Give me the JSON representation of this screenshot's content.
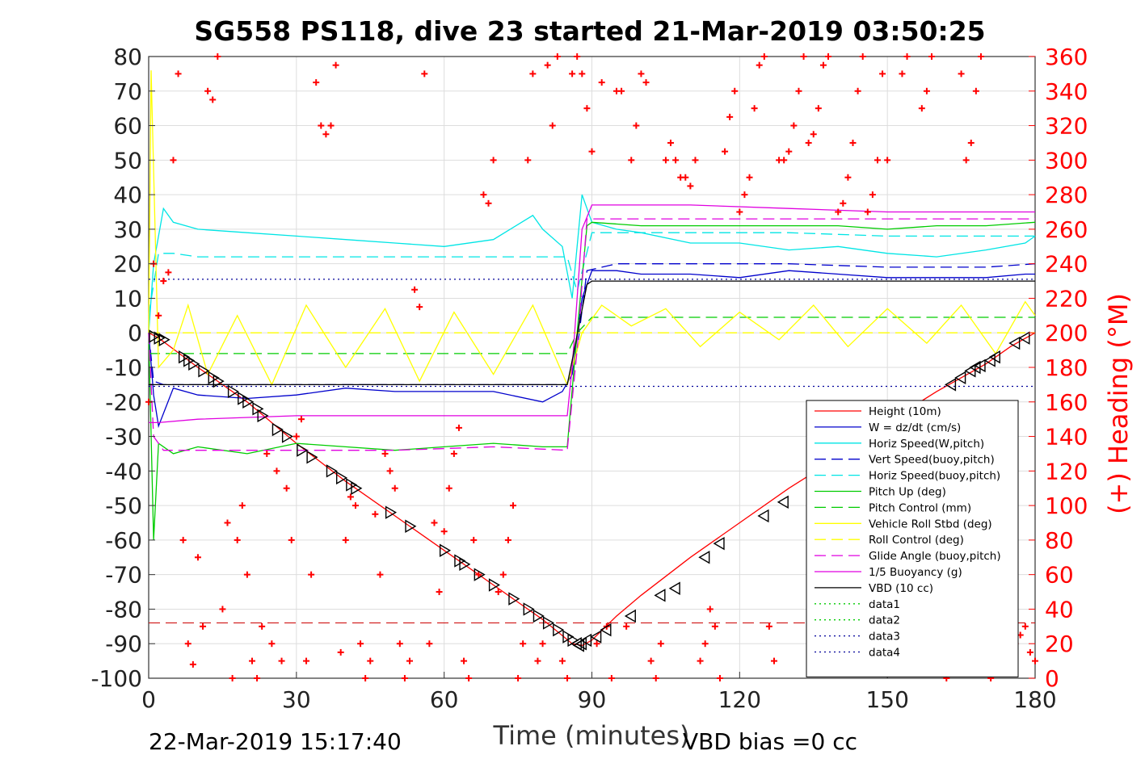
{
  "chart_data": {
    "type": "line",
    "title": "SG558 PS118, dive 23 started 21-Mar-2019 03:50:25",
    "xlabel": "Time (minutes)",
    "ylabel_right": "(+) Heading (°M)",
    "xlim": [
      0,
      180
    ],
    "ylim": [
      -100,
      80
    ],
    "ylim_right": [
      0,
      360
    ],
    "x_ticks": [
      0,
      30,
      60,
      90,
      120,
      150,
      180
    ],
    "y_ticks": [
      80,
      70,
      60,
      50,
      40,
      30,
      20,
      10,
      0,
      -10,
      -20,
      -30,
      -40,
      -50,
      -60,
      -70,
      -80,
      -90,
      -100
    ],
    "y_ticks_right": [
      360,
      340,
      320,
      300,
      280,
      260,
      240,
      220,
      200,
      180,
      160,
      140,
      120,
      100,
      80,
      60,
      40,
      20,
      0
    ],
    "grid": true,
    "legend_position": "lower-right",
    "footer_left": "22-Mar-2019 15:17:40",
    "footer_right": "VBD bias =0 cc",
    "series": [
      {
        "name": "Height (10m)",
        "color": "#ff0000",
        "style": "solid",
        "x": [
          0,
          2,
          10,
          20,
          30,
          40,
          50,
          60,
          70,
          80,
          86,
          88,
          90,
          95,
          100,
          110,
          120,
          130,
          140,
          150,
          160,
          170,
          175,
          180
        ],
        "y": [
          0,
          -1.5,
          -10,
          -20,
          -32,
          -43,
          -53,
          -63,
          -73,
          -83,
          -90,
          -90.5,
          -89,
          -82,
          -76,
          -65,
          -55,
          -45,
          -36,
          -26,
          -17,
          -9,
          -4,
          0
        ]
      },
      {
        "name": "W = dz/dt (cm/s)",
        "color": "#0000cc",
        "style": "solid",
        "x": [
          0,
          1,
          2,
          5,
          10,
          20,
          30,
          40,
          50,
          60,
          70,
          80,
          84,
          86,
          88,
          90,
          95,
          100,
          110,
          120,
          130,
          140,
          150,
          160,
          170,
          178,
          180
        ],
        "y": [
          0,
          -18,
          -27,
          -16,
          -18,
          -19,
          -18,
          -16,
          -17,
          -17,
          -17,
          -20,
          -17,
          -12,
          10,
          18,
          18,
          17,
          17,
          16,
          18,
          17,
          16,
          16,
          16,
          17,
          17
        ]
      },
      {
        "name": "Horiz Speed(W,pitch)",
        "color": "#00e5e5",
        "style": "solid",
        "x": [
          0,
          1,
          2,
          3,
          5,
          10,
          20,
          30,
          40,
          50,
          60,
          70,
          78,
          80,
          84,
          86,
          88,
          90,
          95,
          100,
          110,
          120,
          130,
          140,
          150,
          160,
          170,
          178,
          180
        ],
        "y": [
          0,
          20,
          28,
          36,
          32,
          30,
          29,
          28,
          27,
          26,
          25,
          27,
          34,
          30,
          25,
          10,
          40,
          32,
          30,
          29,
          26,
          26,
          24,
          25,
          23,
          22,
          24,
          26,
          28
        ]
      },
      {
        "name": "Vert Speed(buoy,pitch)",
        "color": "#0000cc",
        "style": "dashed",
        "x": [
          0,
          1,
          3,
          10,
          30,
          50,
          70,
          85,
          87,
          89,
          95,
          110,
          130,
          150,
          170,
          180
        ],
        "y": [
          0,
          -14,
          -15,
          -15,
          -15,
          -15,
          -15,
          -15,
          -5,
          18,
          20,
          20,
          20,
          19,
          19,
          20
        ]
      },
      {
        "name": "Horiz Speed(buoy,pitch)",
        "color": "#00e5e5",
        "style": "dashed",
        "x": [
          0,
          2,
          5,
          10,
          30,
          50,
          70,
          85,
          87,
          90,
          110,
          130,
          150,
          170,
          180
        ],
        "y": [
          5,
          23,
          23,
          22,
          22,
          22,
          22,
          22,
          12,
          29,
          29,
          29,
          28,
          28,
          28
        ]
      },
      {
        "name": "Pitch Up (deg)",
        "color": "#00cc00",
        "style": "solid",
        "x": [
          0,
          1,
          2,
          5,
          10,
          20,
          30,
          40,
          50,
          60,
          70,
          80,
          85,
          87,
          89,
          90,
          100,
          110,
          120,
          130,
          140,
          150,
          160,
          170,
          180
        ],
        "y": [
          0,
          -60,
          -32,
          -35,
          -33,
          -35,
          -32,
          -33,
          -34,
          -33,
          -32,
          -33,
          -33,
          0,
          31,
          32,
          31,
          31,
          31,
          31,
          31,
          30,
          31,
          31,
          32
        ]
      },
      {
        "name": "Pitch Control (mm)",
        "color": "#00cc00",
        "style": "dashed",
        "x": [
          0,
          2,
          85,
          87,
          90,
          180
        ],
        "y": [
          -6,
          -6,
          -6,
          0,
          4.5,
          4.5
        ]
      },
      {
        "name": "Vehicle Roll Stbd (deg)",
        "color": "#ffff00",
        "style": "solid",
        "x": [
          0,
          0.5,
          2,
          5,
          8,
          12,
          18,
          25,
          32,
          40,
          48,
          55,
          62,
          70,
          78,
          85,
          88,
          92,
          98,
          105,
          112,
          120,
          128,
          135,
          142,
          150,
          158,
          165,
          172,
          178,
          180
        ],
        "y": [
          0,
          76,
          -10,
          -5,
          8,
          -12,
          5,
          -15,
          8,
          -10,
          7,
          -14,
          6,
          -12,
          8,
          -15,
          0,
          8,
          2,
          7,
          -4,
          6,
          -2,
          8,
          -4,
          7,
          -3,
          8,
          -6,
          9,
          5
        ]
      },
      {
        "name": "Roll Control (deg)",
        "color": "#ffff00",
        "style": "dashed",
        "x": [
          0,
          180
        ],
        "y": [
          0,
          0
        ]
      },
      {
        "name": "Glide Angle (buoy,pitch)",
        "color": "#e000e0",
        "style": "dashed",
        "x": [
          0,
          1,
          3,
          10,
          30,
          50,
          70,
          85,
          87,
          89,
          95,
          110,
          130,
          150,
          170,
          180
        ],
        "y": [
          0,
          -30,
          -34,
          -34,
          -34,
          -34,
          -33,
          -34,
          -5,
          33,
          33,
          33,
          33,
          33,
          33,
          33
        ]
      },
      {
        "name": "1/5 Buoyancy (g)",
        "color": "#e000e0",
        "style": "solid",
        "x": [
          0,
          2,
          10,
          30,
          50,
          70,
          85,
          86,
          88,
          90,
          110,
          130,
          150,
          170,
          180
        ],
        "y": [
          -26,
          -26,
          -25,
          -24,
          -24,
          -24,
          -24,
          -10,
          30,
          37,
          37,
          36,
          35,
          35,
          35
        ]
      },
      {
        "name": "VBD (10 cc)",
        "color": "#000000",
        "style": "solid",
        "x": [
          0,
          2,
          30,
          60,
          85,
          86,
          89,
          90,
          120,
          150,
          180
        ],
        "y": [
          -15,
          -15,
          -15,
          -15,
          -15,
          -8,
          14,
          15,
          15,
          15,
          15
        ]
      },
      {
        "name": "data1",
        "color": "#00cc00",
        "style": "dotted",
        "x": [],
        "y": []
      },
      {
        "name": "data2",
        "color": "#00cc00",
        "style": "dotted",
        "x": [],
        "y": []
      },
      {
        "name": "data3",
        "color": "#000099",
        "style": "dotted",
        "x": [
          0,
          180
        ],
        "y": [
          15.5,
          15.5
        ]
      },
      {
        "name": "data4",
        "color": "#000099",
        "style": "dotted",
        "x": [
          0,
          180
        ],
        "y": [
          -15.5,
          -15.5
        ]
      }
    ],
    "heading_series": {
      "color": "#ff0000",
      "marker": "+",
      "x": [
        0,
        1,
        2,
        3,
        4,
        5,
        6,
        7,
        8,
        9,
        10,
        11,
        12,
        13,
        14,
        15,
        16,
        17,
        18,
        19,
        20,
        21,
        22,
        23,
        24,
        25,
        26,
        27,
        28,
        29,
        30,
        31,
        32,
        33,
        34,
        35,
        36,
        37,
        38,
        39,
        40,
        41,
        42,
        43,
        44,
        45,
        46,
        47,
        48,
        49,
        50,
        51,
        52,
        53,
        54,
        55,
        56,
        57,
        58,
        59,
        60,
        61,
        62,
        63,
        64,
        65,
        66,
        67,
        68,
        69,
        70,
        71,
        72,
        73,
        74,
        75,
        76,
        77,
        78,
        79,
        80,
        81,
        82,
        83,
        84,
        85,
        86,
        87,
        88,
        89,
        90,
        91,
        92,
        93,
        94,
        95,
        96,
        97,
        98,
        99,
        100,
        101,
        102,
        103,
        104,
        105,
        106,
        107,
        108,
        109,
        110,
        111,
        112,
        113,
        114,
        115,
        116,
        117,
        118,
        119,
        120,
        121,
        122,
        123,
        124,
        125,
        126,
        127,
        128,
        129,
        130,
        131,
        132,
        133,
        134,
        135,
        136,
        137,
        138,
        139,
        140,
        141,
        142,
        143,
        144,
        145,
        146,
        147,
        148,
        149,
        150,
        151,
        152,
        153,
        154,
        155,
        156,
        157,
        158,
        159,
        160,
        161,
        162,
        163,
        164,
        165,
        166,
        167,
        168,
        169,
        170,
        171,
        172,
        173,
        174,
        175,
        176,
        177,
        178,
        179,
        180
      ],
      "y": [
        160,
        240,
        210,
        230,
        235,
        300,
        350,
        80,
        20,
        8,
        70,
        30,
        340,
        335,
        360,
        40,
        90,
        0,
        80,
        100,
        60,
        10,
        0,
        30,
        130,
        20,
        120,
        10,
        110,
        80,
        140,
        150,
        10,
        60,
        345,
        320,
        315,
        320,
        355,
        15,
        80,
        105,
        100,
        20,
        0,
        10,
        95,
        60,
        130,
        120,
        110,
        20,
        0,
        10,
        225,
        215,
        350,
        20,
        90,
        50,
        85,
        110,
        130,
        145,
        10,
        0,
        80,
        60,
        280,
        275,
        300,
        50,
        60,
        80,
        100,
        0,
        20,
        300,
        350,
        10,
        20,
        355,
        320,
        360,
        10,
        0,
        350,
        360,
        350,
        330,
        305,
        20,
        345,
        30,
        0,
        340,
        340,
        30,
        300,
        320,
        350,
        345,
        10,
        0,
        20,
        300,
        310,
        300,
        290,
        290,
        285,
        300,
        10,
        20,
        40,
        30,
        0,
        305,
        325,
        340,
        270,
        280,
        290,
        330,
        355,
        360,
        30,
        10,
        300,
        300,
        305,
        320,
        340,
        360,
        310,
        315,
        330,
        355,
        360,
        10,
        270,
        275,
        290,
        310,
        340,
        360,
        270,
        280,
        300,
        350,
        300,
        10,
        30,
        350,
        360,
        20,
        10,
        330,
        340,
        360,
        5,
        20,
        0,
        15,
        10,
        350,
        300,
        310,
        340,
        360,
        5,
        0,
        15,
        20,
        30,
        10,
        20,
        25,
        30,
        15,
        10
      ]
    },
    "markers_series": {
      "name": "VBD pump markers",
      "marker": "triangle",
      "x": [
        1,
        2,
        3,
        7,
        8,
        9,
        11,
        13,
        14,
        17,
        19,
        20,
        22,
        23,
        26,
        28,
        31,
        33,
        37,
        39,
        41,
        42,
        49,
        53,
        60,
        63,
        64,
        67,
        70,
        74,
        77,
        79,
        81,
        83,
        85,
        86,
        87,
        87.5,
        88,
        89,
        91,
        93,
        98,
        104,
        107,
        113,
        116,
        125,
        129,
        163,
        165,
        167,
        168,
        169,
        171,
        172,
        176,
        178
      ],
      "y": [
        -1,
        -1.5,
        -2,
        -7,
        -8,
        -9,
        -11,
        -13,
        -14,
        -17,
        -19,
        -20,
        -22,
        -24,
        -28,
        -30,
        -34,
        -36,
        -40,
        -42,
        -44,
        -45,
        -52,
        -56,
        -63,
        -66,
        -67,
        -70,
        -73,
        -77,
        -80,
        -82,
        -84,
        -86,
        -88,
        -89,
        -90,
        -90.5,
        -90,
        -89,
        -88,
        -86,
        -82,
        -76,
        -74,
        -65,
        -61,
        -53,
        -49,
        -15,
        -13,
        -11,
        -10,
        -9.5,
        -8,
        -7,
        -3,
        -1.5
      ]
    }
  }
}
